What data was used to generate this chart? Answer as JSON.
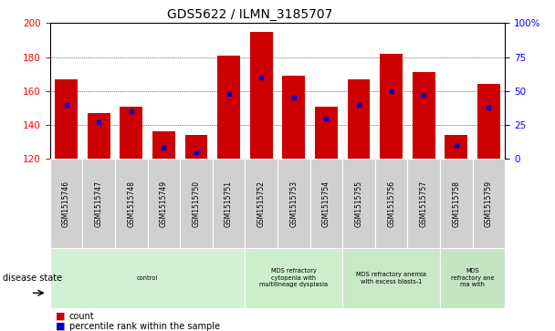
{
  "title": "GDS5622 / ILMN_3185707",
  "samples": [
    "GSM1515746",
    "GSM1515747",
    "GSM1515748",
    "GSM1515749",
    "GSM1515750",
    "GSM1515751",
    "GSM1515752",
    "GSM1515753",
    "GSM1515754",
    "GSM1515755",
    "GSM1515756",
    "GSM1515757",
    "GSM1515758",
    "GSM1515759"
  ],
  "counts": [
    167,
    147,
    151,
    136,
    134,
    181,
    195,
    169,
    151,
    167,
    182,
    171,
    134,
    164
  ],
  "percentile_ranks": [
    40,
    27,
    35,
    8,
    5,
    48,
    60,
    45,
    30,
    40,
    50,
    47,
    10,
    38
  ],
  "ylim_left": [
    120,
    200
  ],
  "ylim_right": [
    0,
    100
  ],
  "yticks_left": [
    120,
    140,
    160,
    180,
    200
  ],
  "yticks_right": [
    0,
    25,
    50,
    75,
    100
  ],
  "bar_color": "#cc0000",
  "dot_color": "#0000cc",
  "disease_groups": [
    {
      "label": "control",
      "start": 0,
      "end": 6,
      "color": "#d4f0d4"
    },
    {
      "label": "MDS refractory\ncytopenia with\nmultilineage dysplasia",
      "start": 6,
      "end": 9,
      "color": "#cceecc"
    },
    {
      "label": "MDS refractory anemia\nwith excess blasts-1",
      "start": 9,
      "end": 12,
      "color": "#c8e8c8"
    },
    {
      "label": "MDS\nrefractory ane\nma with",
      "start": 12,
      "end": 14,
      "color": "#c4e4c4"
    }
  ],
  "legend_count_label": "count",
  "legend_pct_label": "percentile rank within the sample",
  "disease_state_label": "disease state",
  "n_samples": 14,
  "label_area_color": "#d0d0d0",
  "right_ytick_pct_suffix": "%"
}
